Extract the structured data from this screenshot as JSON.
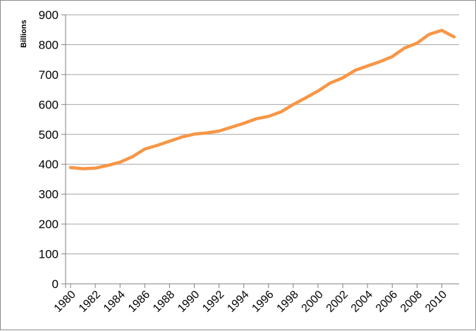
{
  "chart_data": {
    "type": "line",
    "title": "",
    "xlabel": "",
    "ylabel": "Billions",
    "ylim": [
      0,
      900
    ],
    "yticks": [
      0,
      100,
      200,
      300,
      400,
      500,
      600,
      700,
      800,
      900
    ],
    "xticks": [
      "1980",
      "1982",
      "1984",
      "1986",
      "1988",
      "1990",
      "1992",
      "1994",
      "1996",
      "1998",
      "2000",
      "2002",
      "2004",
      "2006",
      "2008",
      "2010"
    ],
    "grid": "horizontal",
    "legend": "none",
    "line_color": "#f79646",
    "grid_color": "#a6a6a6",
    "x": [
      1980,
      1981,
      1982,
      1983,
      1984,
      1985,
      1986,
      1987,
      1988,
      1989,
      1990,
      1991,
      1992,
      1993,
      1994,
      1995,
      1996,
      1997,
      1998,
      1999,
      2000,
      2001,
      2002,
      2003,
      2004,
      2005,
      2006,
      2007,
      2008,
      2009,
      2010,
      2011
    ],
    "series": [
      {
        "values": [
          389,
          385,
          387,
          396,
          407,
          425,
          451,
          463,
          477,
          491,
          501,
          505,
          511,
          524,
          537,
          552,
          560,
          575,
          600,
          622,
          645,
          672,
          689,
          714,
          729,
          743,
          760,
          789,
          805,
          835,
          848,
          826
        ]
      }
    ]
  }
}
